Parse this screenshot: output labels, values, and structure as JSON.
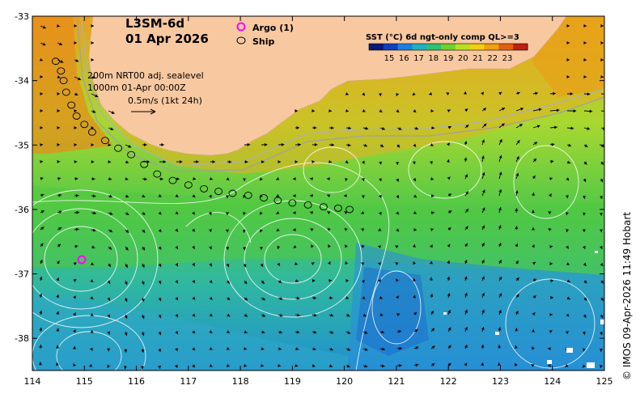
{
  "title": {
    "product": "L3SM-6d",
    "date": "01 Apr 2026"
  },
  "legend": {
    "argo_label": "Argo (1)",
    "ship_label": "Ship"
  },
  "colorbar": {
    "title": "SST (°C) 6d ngt-only comp QL>=3",
    "ticks": [
      "15",
      "16",
      "17",
      "18",
      "19",
      "20",
      "21",
      "22",
      "23"
    ],
    "colors": [
      "#0a1a7a",
      "#1040c0",
      "#1a80e0",
      "#20b0c0",
      "#30c070",
      "#70d030",
      "#b8e020",
      "#f0d010",
      "#f0a010",
      "#e06010",
      "#c02010"
    ]
  },
  "annotation": {
    "line1": "200m   NRT00 adj. sealevel",
    "line2": "1000m 01-Apr 00:00Z",
    "line3": "0.5m/s (1kt 24h)"
  },
  "copyright": "© IMOS 09-Apr-2026 11:49 Hobart",
  "chart_data": {
    "type": "map",
    "x_ticks": [
      "114",
      "115",
      "116",
      "117",
      "118",
      "119",
      "120",
      "121",
      "122",
      "123",
      "124",
      "125"
    ],
    "y_ticks": [
      "-33",
      "-34",
      "-35",
      "-36",
      "-37",
      "-38"
    ],
    "xlim": [
      114,
      125
    ],
    "ylim": [
      -38.5,
      -33
    ],
    "argo_position": {
      "lon": 114.95,
      "lat": -36.78
    },
    "ship_track": [
      {
        "lon": 114.45,
        "lat": -33.7
      },
      {
        "lon": 114.55,
        "lat": -33.85
      },
      {
        "lon": 114.6,
        "lat": -34.0
      },
      {
        "lon": 114.65,
        "lat": -34.18
      },
      {
        "lon": 114.75,
        "lat": -34.38
      },
      {
        "lon": 114.85,
        "lat": -34.55
      },
      {
        "lon": 115.0,
        "lat": -34.68
      },
      {
        "lon": 115.15,
        "lat": -34.8
      },
      {
        "lon": 115.4,
        "lat": -34.93
      },
      {
        "lon": 115.65,
        "lat": -35.05
      },
      {
        "lon": 115.9,
        "lat": -35.15
      },
      {
        "lon": 116.15,
        "lat": -35.3
      },
      {
        "lon": 116.4,
        "lat": -35.45
      },
      {
        "lon": 116.7,
        "lat": -35.55
      },
      {
        "lon": 117.0,
        "lat": -35.62
      },
      {
        "lon": 117.3,
        "lat": -35.68
      },
      {
        "lon": 117.58,
        "lat": -35.72
      },
      {
        "lon": 117.85,
        "lat": -35.75
      },
      {
        "lon": 118.15,
        "lat": -35.78
      },
      {
        "lon": 118.45,
        "lat": -35.82
      },
      {
        "lon": 118.72,
        "lat": -35.86
      },
      {
        "lon": 119.0,
        "lat": -35.9
      },
      {
        "lon": 119.3,
        "lat": -35.93
      },
      {
        "lon": 119.6,
        "lat": -35.96
      },
      {
        "lon": 119.88,
        "lat": -35.98
      },
      {
        "lon": 120.1,
        "lat": -36.0
      }
    ]
  }
}
